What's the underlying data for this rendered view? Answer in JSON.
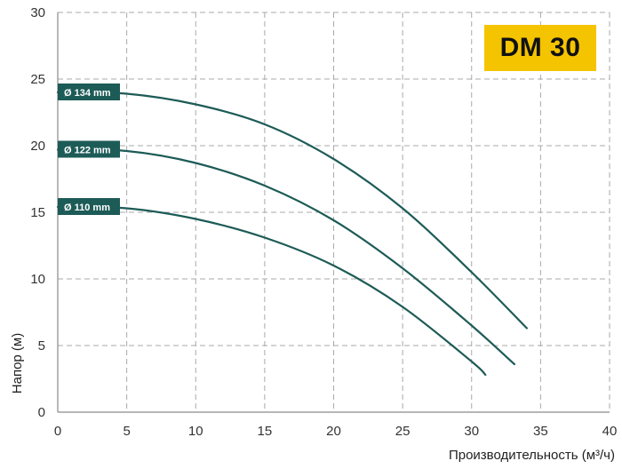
{
  "colors": {
    "curve": "#1d5b57",
    "badge": "#f5c400",
    "flag": "#1d5b57"
  },
  "model_badge": "DM 30",
  "chart_data": {
    "type": "line",
    "title": "",
    "xlabel": "Производительность (м³/ч)",
    "ylabel": "Напор (м)",
    "xlim": [
      0,
      40
    ],
    "ylim": [
      0,
      30
    ],
    "xticks": [
      0,
      5,
      10,
      15,
      20,
      25,
      30,
      35,
      40
    ],
    "yticks": [
      0,
      5,
      10,
      15,
      20,
      25,
      30
    ],
    "grid": true,
    "series": [
      {
        "name": "Ø 134 mm",
        "x": [
          0,
          5,
          10,
          15,
          20,
          25,
          30,
          34
        ],
        "y": [
          24,
          23.9,
          23.1,
          21.6,
          19.0,
          15.3,
          10.5,
          6.3
        ]
      },
      {
        "name": "Ø 122 mm",
        "x": [
          0,
          5,
          10,
          15,
          20,
          25,
          30,
          33.1
        ],
        "y": [
          19.7,
          19.6,
          18.7,
          17.0,
          14.4,
          10.8,
          6.5,
          3.6
        ]
      },
      {
        "name": "Ø 110 mm",
        "x": [
          0,
          5,
          10,
          15,
          20,
          25,
          30,
          31
        ],
        "y": [
          15.4,
          15.3,
          14.5,
          13.1,
          11.0,
          7.9,
          3.8,
          2.8
        ]
      }
    ]
  }
}
